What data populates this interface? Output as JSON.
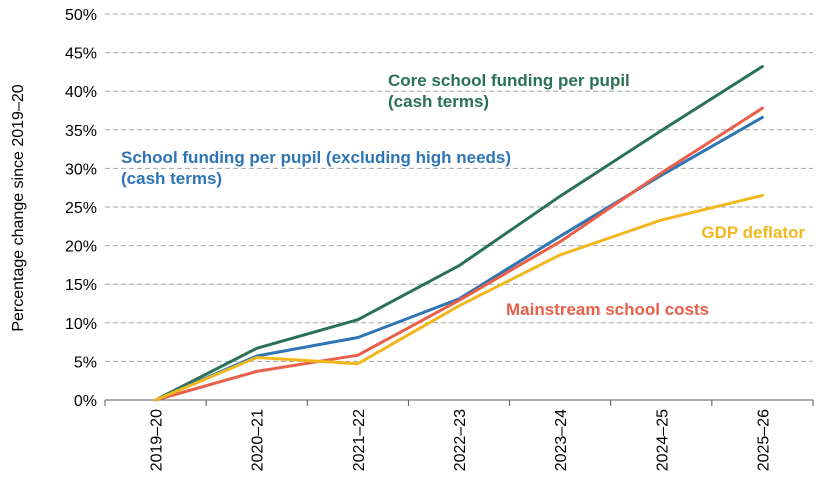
{
  "chart_data": {
    "type": "line",
    "ylabel": "Percentage change since 2019–20",
    "xlabel": "",
    "ylim": [
      0,
      50
    ],
    "y_ticks": [
      "0%",
      "5%",
      "10%",
      "15%",
      "20%",
      "25%",
      "30%",
      "35%",
      "40%",
      "45%",
      "50%"
    ],
    "grid": "horizontal dashed",
    "categories": [
      "2019–20",
      "2020–21",
      "2021–22",
      "2022–23",
      "2023–24",
      "2024–25",
      "2025–26"
    ],
    "series": [
      {
        "name": "Core school funding per pupil (cash terms)",
        "label_lines": [
          "Core school funding per pupil",
          "(cash terms)"
        ],
        "color": "#2a7155",
        "values": [
          0,
          6.7,
          10.4,
          17.4,
          26.4,
          34.9,
          43.2
        ]
      },
      {
        "name": "School funding per pupil (excluding high needs) (cash terms)",
        "label_lines": [
          "School funding per pupil (excluding high needs)",
          "(cash terms)"
        ],
        "color": "#2e75b6",
        "values": [
          0,
          5.7,
          8.1,
          13.1,
          21.2,
          29.1,
          36.6
        ]
      },
      {
        "name": "Mainstream school costs",
        "label_lines": [
          "Mainstream school costs"
        ],
        "color": "#e8604a",
        "values": [
          0,
          3.7,
          5.8,
          12.9,
          20.5,
          29.4,
          37.8
        ]
      },
      {
        "name": "GDP deflator",
        "label_lines": [
          "GDP deflator"
        ],
        "color": "#f0b81e",
        "values": [
          0,
          5.5,
          4.7,
          12.2,
          18.8,
          23.3,
          26.5
        ]
      }
    ]
  }
}
